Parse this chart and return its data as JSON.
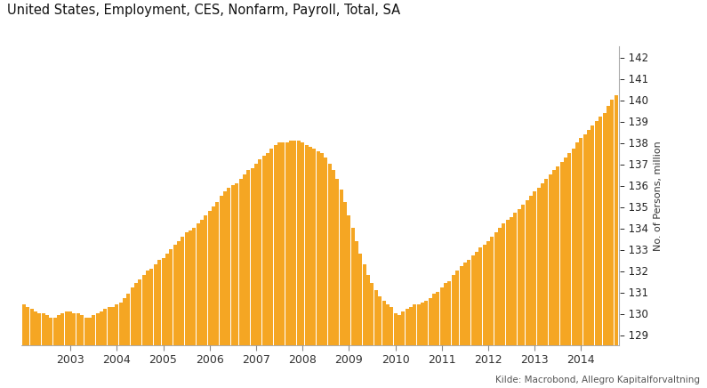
{
  "title": "United States, Employment, CES, Nonfarm, Payroll, Total, SA",
  "ylabel": "No. of Persons, million",
  "source": "Kilde: Macrobond, Allegro Kapitalforvaltning",
  "bar_color": "#F5A623",
  "background_color": "#FFFFFF",
  "plot_bg_color": "#FFFFFF",
  "ylim": [
    128.5,
    142.5
  ],
  "yticks": [
    129,
    130,
    131,
    132,
    133,
    134,
    135,
    136,
    137,
    138,
    139,
    140,
    141,
    142
  ],
  "nfp_data": [
    130.4,
    130.3,
    130.2,
    130.1,
    130.0,
    130.0,
    129.9,
    129.8,
    129.8,
    129.9,
    130.0,
    130.1,
    130.1,
    130.0,
    130.0,
    129.9,
    129.8,
    129.8,
    129.9,
    130.0,
    130.1,
    130.2,
    130.3,
    130.3,
    130.4,
    130.5,
    130.7,
    130.9,
    131.2,
    131.4,
    131.6,
    131.8,
    132.0,
    132.1,
    132.3,
    132.5,
    132.6,
    132.8,
    133.0,
    133.2,
    133.4,
    133.6,
    133.8,
    133.9,
    134.0,
    134.2,
    134.4,
    134.6,
    134.8,
    135.0,
    135.2,
    135.5,
    135.7,
    135.9,
    136.0,
    136.1,
    136.3,
    136.5,
    136.7,
    136.8,
    137.0,
    137.2,
    137.4,
    137.5,
    137.7,
    137.9,
    138.0,
    138.0,
    138.0,
    138.1,
    138.1,
    138.1,
    138.0,
    137.9,
    137.8,
    137.7,
    137.6,
    137.5,
    137.3,
    137.0,
    136.7,
    136.3,
    135.8,
    135.2,
    134.6,
    134.0,
    133.4,
    132.8,
    132.3,
    131.8,
    131.4,
    131.1,
    130.8,
    130.6,
    130.4,
    130.3,
    130.0,
    129.9,
    130.1,
    130.2,
    130.3,
    130.4,
    130.4,
    130.5,
    130.6,
    130.7,
    130.9,
    131.0,
    131.2,
    131.4,
    131.5,
    131.8,
    132.0,
    132.2,
    132.4,
    132.5,
    132.7,
    132.9,
    133.1,
    133.2,
    133.4,
    133.6,
    133.8,
    134.0,
    134.2,
    134.4,
    134.5,
    134.7,
    134.9,
    135.1,
    135.3,
    135.5,
    135.7,
    135.9,
    136.1,
    136.3,
    136.5,
    136.7,
    136.9,
    137.1,
    137.3,
    137.5,
    137.7,
    138.0,
    138.2,
    138.4,
    138.6,
    138.8,
    139.0,
    139.2,
    139.4,
    139.7,
    140.0,
    140.2
  ],
  "start_year": 2002,
  "year_labels": [
    2003,
    2004,
    2005,
    2006,
    2007,
    2008,
    2009,
    2010,
    2011,
    2012,
    2013,
    2014
  ]
}
